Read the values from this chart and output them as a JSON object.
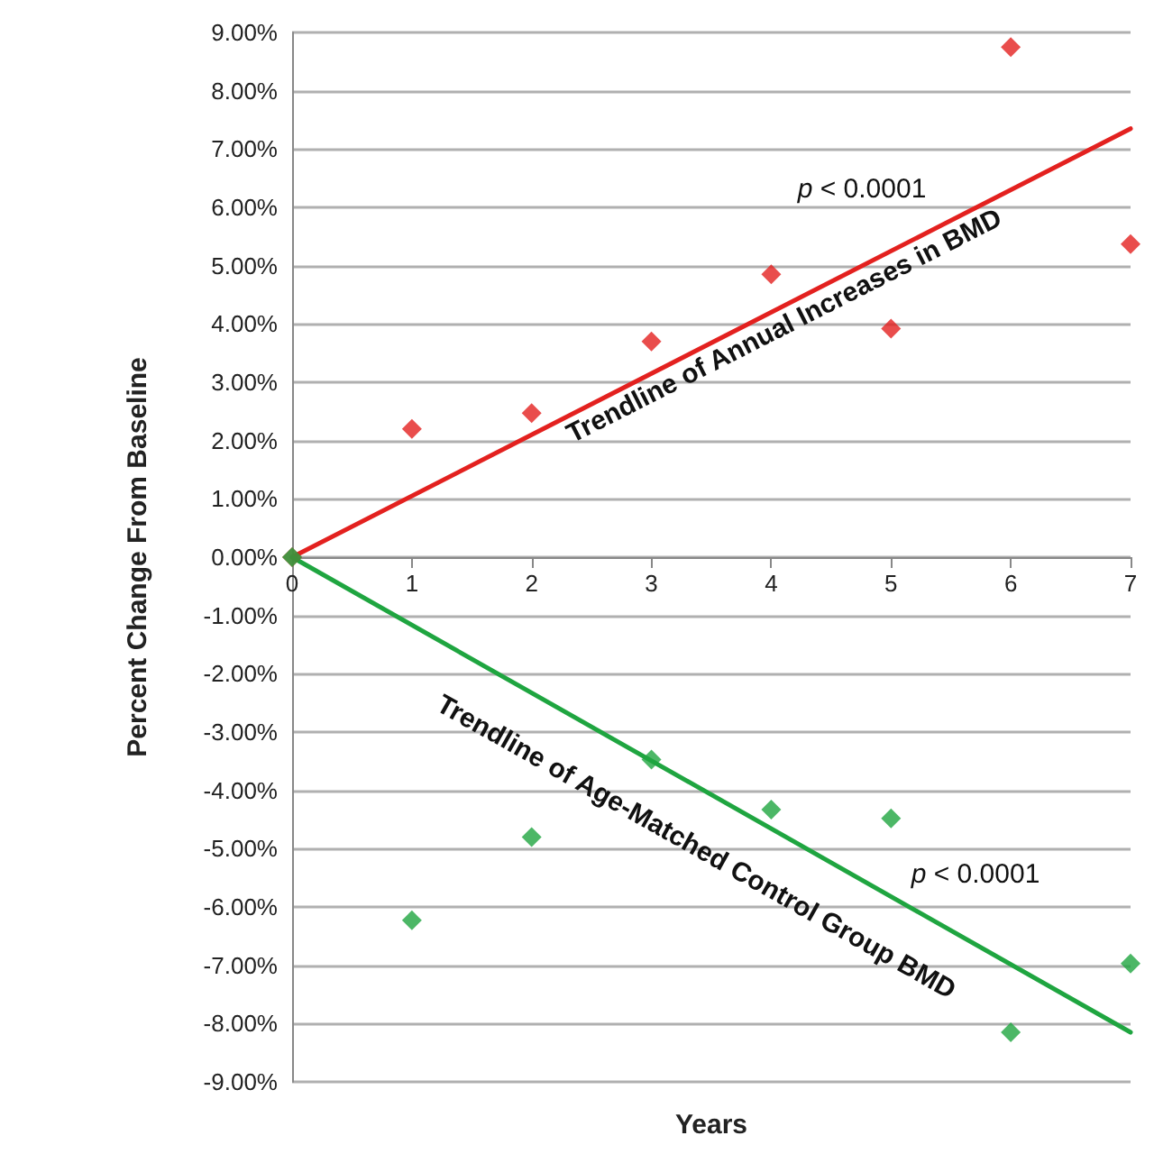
{
  "chart_data": {
    "type": "scatter",
    "xlabel": "Years",
    "ylabel": "Percent Change From Baseline",
    "xlim": [
      0,
      7
    ],
    "xticks": [
      0,
      1,
      2,
      3,
      4,
      5,
      6,
      7
    ],
    "ylim": [
      -9,
      9
    ],
    "yticks": [
      {
        "value": -9,
        "label": "-9.00%"
      },
      {
        "value": -8,
        "label": "-8.00%"
      },
      {
        "value": -7,
        "label": "-7.00%"
      },
      {
        "value": -6,
        "label": "-6.00%"
      },
      {
        "value": -5,
        "label": "-5.00%"
      },
      {
        "value": -4,
        "label": "-4.00%"
      },
      {
        "value": -3,
        "label": "-3.00%"
      },
      {
        "value": -2,
        "label": "-2.00%"
      },
      {
        "value": -1,
        "label": "-1.00%"
      },
      {
        "value": 0,
        "label": "0.00%"
      },
      {
        "value": 1,
        "label": "1.00%"
      },
      {
        "value": 2,
        "label": "2.00%"
      },
      {
        "value": 3,
        "label": "3.00%"
      },
      {
        "value": 4,
        "label": "4.00%"
      },
      {
        "value": 5,
        "label": "5.00%"
      },
      {
        "value": 6,
        "label": "6.00%"
      },
      {
        "value": 7,
        "label": "7.00%"
      },
      {
        "value": 8,
        "label": "8.00%"
      },
      {
        "value": 9,
        "label": "9.00%"
      }
    ],
    "grid": "y",
    "marker": "diamond",
    "series": [
      {
        "color": "#e3211f",
        "x": [
          0,
          1,
          2,
          3,
          4,
          5,
          6,
          7
        ],
        "values": [
          0,
          2.2,
          2.47,
          3.7,
          4.85,
          3.92,
          8.75,
          5.37
        ]
      },
      {
        "color": "#1fa540",
        "x": [
          0,
          1,
          2,
          3,
          4,
          5,
          6,
          7
        ],
        "values": [
          0,
          -6.23,
          -4.8,
          -3.47,
          -4.33,
          -4.48,
          -8.15,
          -6.97
        ]
      },
      {
        "type": "line",
        "color": "#e3211f",
        "x": [
          0,
          7
        ],
        "values": [
          0,
          7.35
        ],
        "marker": "none",
        "line_style": "solid"
      },
      {
        "type": "line",
        "color": "#1fa540",
        "x": [
          0,
          7
        ],
        "values": [
          0,
          -8.15
        ],
        "marker": "none",
        "line_style": "solid"
      }
    ],
    "annotations": [
      "Trendline of Annual Increases in BMD",
      "Trendline of Age-Matched Control Group BMD",
      "p < 0.0001",
      "p < 0.0001"
    ]
  }
}
